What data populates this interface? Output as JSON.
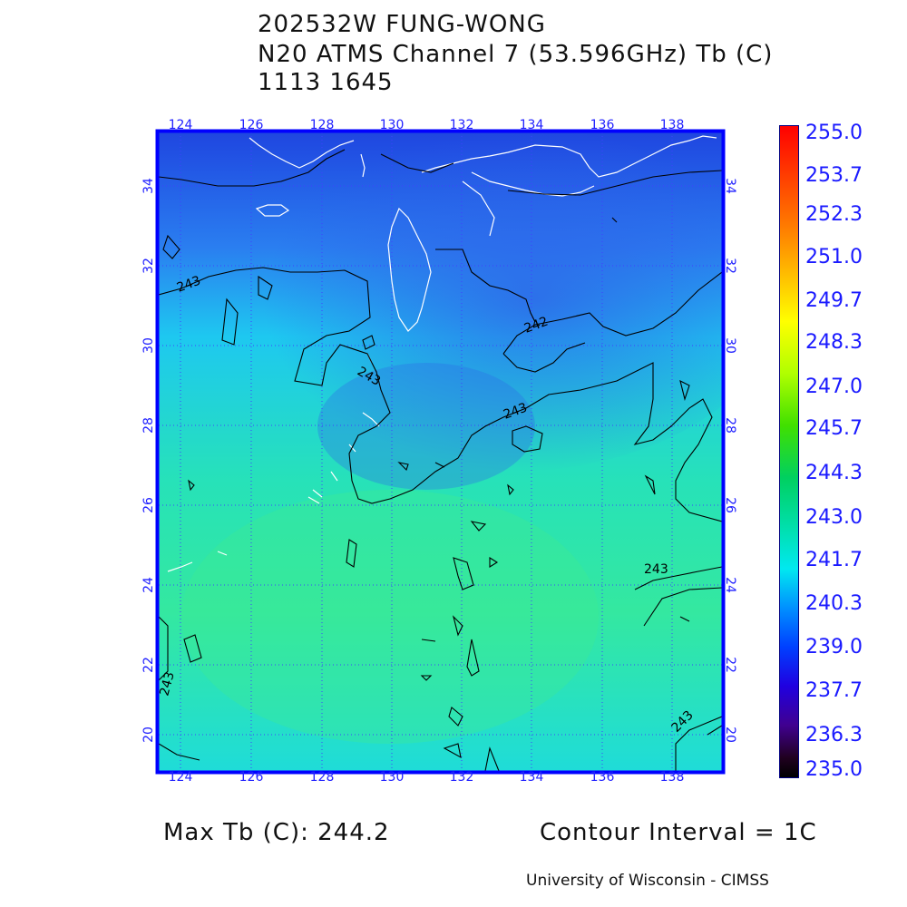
{
  "header": {
    "line1": "202532W FUNG-WONG",
    "line2": "N20 ATMS Channel 7 (53.596GHz) Tb (C)",
    "line3": "1113 1645"
  },
  "map": {
    "lon_ticks": [
      "124",
      "126",
      "128",
      "130",
      "132",
      "134",
      "136",
      "138"
    ],
    "lat_ticks": [
      "20",
      "22",
      "24",
      "26",
      "28",
      "30",
      "32",
      "34"
    ],
    "contour_labels": [
      "243",
      "242",
      "243",
      "243",
      "243",
      "243",
      "243"
    ],
    "colors": {
      "cold": "#2a5ae8",
      "mid": "#1fc8e6",
      "warm": "#3be6a4",
      "coast": "#ffffff",
      "contour": "#000000",
      "frame": "#0000ff",
      "grid": "#4040ff"
    }
  },
  "colorbar": {
    "labels": [
      "255.0",
      "253.7",
      "252.3",
      "251.0",
      "249.7",
      "248.3",
      "247.0",
      "245.7",
      "244.3",
      "243.0",
      "241.7",
      "240.3",
      "239.0",
      "237.7",
      "236.3",
      "235.0"
    ],
    "range": [
      235.0,
      255.0
    ]
  },
  "footer": {
    "max_tb": "Max Tb (C): 244.2",
    "contour_interval": "Contour Interval = 1C",
    "credit": "University of Wisconsin - CIMSS"
  }
}
